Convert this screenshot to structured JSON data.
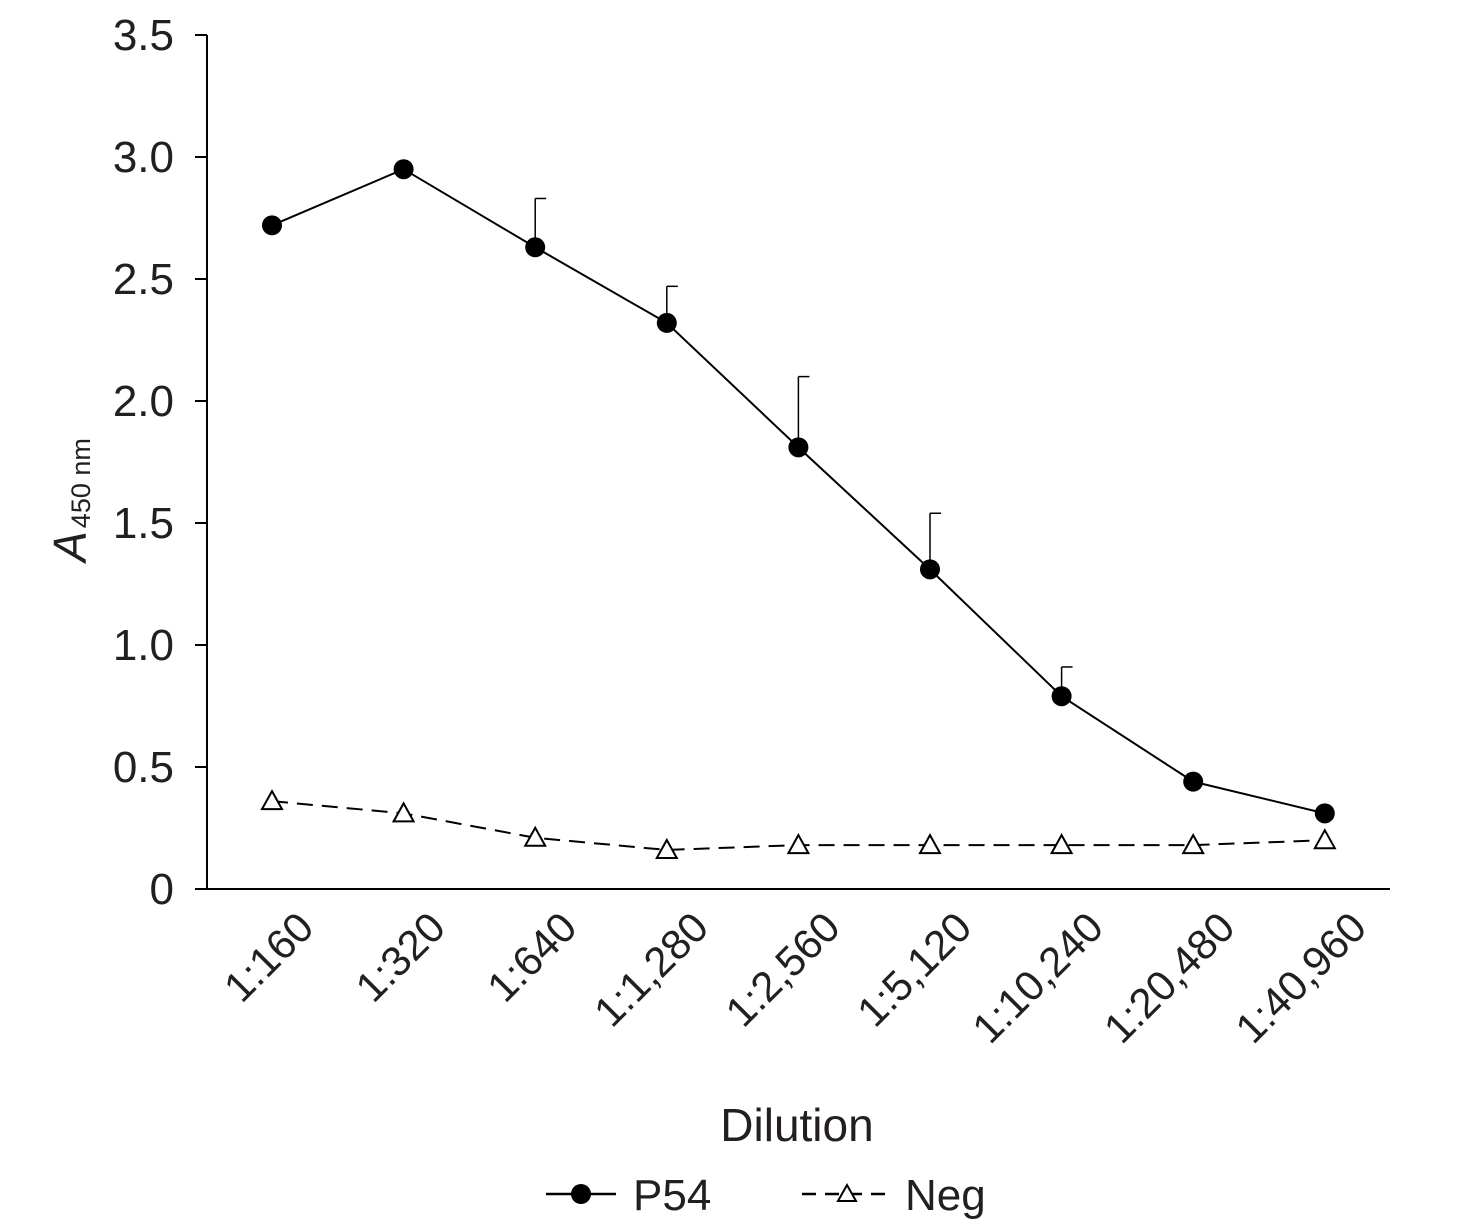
{
  "chart_data": {
    "type": "line",
    "title": "",
    "xlabel": "Dilution",
    "ylabel": {
      "main": "A",
      "subscript": "450 nm"
    },
    "categories": [
      "1:160",
      "1:320",
      "1:640",
      "1:1,280",
      "1:2,560",
      "1:5,120",
      "1:10,240",
      "1:20,480",
      "1:40,960"
    ],
    "ylim": [
      0,
      3.5
    ],
    "yticks": [
      "0",
      "0.5",
      "1.0",
      "1.5",
      "2.0",
      "2.5",
      "3.0",
      "3.5"
    ],
    "ytick_values": [
      0,
      0.5,
      1.0,
      1.5,
      2.0,
      2.5,
      3.0,
      3.5
    ],
    "grid": false,
    "legend_position": "bottom-center",
    "series": [
      {
        "name": "P54",
        "values": [
          2.72,
          2.95,
          2.63,
          2.32,
          1.81,
          1.31,
          0.79,
          0.44,
          0.31
        ],
        "error_upper": [
          null,
          null,
          2.83,
          2.47,
          2.1,
          1.54,
          0.91,
          null,
          null
        ],
        "marker": "filled-circle",
        "line_style": "solid",
        "color": "#000000"
      },
      {
        "name": "Neg",
        "values": [
          0.36,
          0.31,
          0.21,
          0.16,
          0.18,
          0.18,
          0.18,
          0.18,
          0.2
        ],
        "marker": "open-triangle",
        "line_style": "dashed",
        "color": "#000000"
      }
    ]
  }
}
